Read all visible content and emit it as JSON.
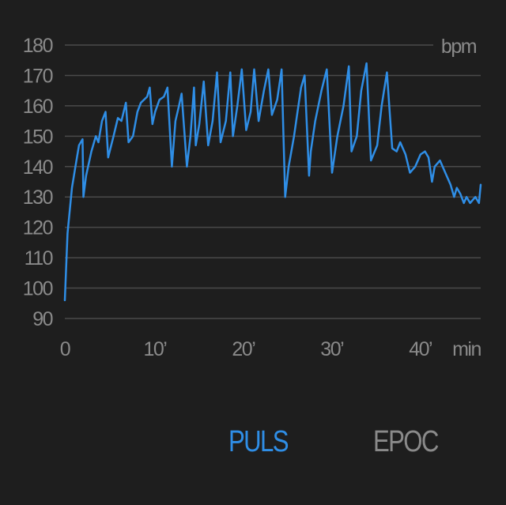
{
  "colors": {
    "accent": "#2f8ee6",
    "inactive": "#8a8a8a",
    "grid": "#4a4a4a",
    "background": "#1e1e1e"
  },
  "tabs": [
    {
      "label": "PULS",
      "active": true
    },
    {
      "label": "EPOC",
      "active": false
    }
  ],
  "chart_data": {
    "type": "line",
    "title": "",
    "y_unit": "bpm",
    "x_unit": "min",
    "ylim": [
      90,
      180
    ],
    "xlim": [
      0,
      47
    ],
    "grid": true,
    "y_ticks": [
      {
        "value": 90,
        "label": "90"
      },
      {
        "value": 100,
        "label": "100"
      },
      {
        "value": 110,
        "label": "110"
      },
      {
        "value": 120,
        "label": "120"
      },
      {
        "value": 130,
        "label": "130"
      },
      {
        "value": 140,
        "label": "140"
      },
      {
        "value": 150,
        "label": "150"
      },
      {
        "value": 160,
        "label": "160"
      },
      {
        "value": 170,
        "label": "170"
      },
      {
        "value": 180,
        "label": "180"
      }
    ],
    "x_ticks": [
      {
        "value": 0,
        "label": "0"
      },
      {
        "value": 10,
        "label": "10’"
      },
      {
        "value": 20,
        "label": "20’"
      },
      {
        "value": 30,
        "label": "30’"
      },
      {
        "value": 40,
        "label": "40’"
      }
    ],
    "series": [
      {
        "x": [
          0,
          0.3,
          0.8,
          1.2,
          1.6,
          2.0,
          2.1,
          2.4,
          3.0,
          3.5,
          3.8,
          4.2,
          4.6,
          4.9,
          5.5,
          6.0,
          6.4,
          6.9,
          7.2,
          7.7,
          8.2,
          8.6,
          9.3,
          9.6,
          9.9,
          10.2,
          10.7,
          11.2,
          11.6,
          12.1,
          12.5,
          12.9,
          13.2,
          13.8,
          14.2,
          14.6,
          14.8,
          15.2,
          15.7,
          16.2,
          16.7,
          17.2,
          17.6,
          18.2,
          18.7,
          19.0,
          19.5,
          20.0,
          20.5,
          21.0,
          21.4,
          21.9,
          22.5,
          23.0,
          23.4,
          24.0,
          24.5,
          24.9,
          25.3,
          25.9,
          26.3,
          26.7,
          27.1,
          27.6,
          27.8,
          28.3,
          29.0,
          29.6,
          30.2,
          30.8,
          31.5,
          32.1,
          32.4,
          33.0,
          33.5,
          34.1,
          34.6,
          35.3,
          35.8,
          36.4,
          37.0,
          37.5,
          37.9,
          38.5,
          39.0,
          39.6,
          40.2,
          40.7,
          41.1,
          41.5,
          41.8,
          42.4,
          43.0,
          43.6,
          44.0,
          44.3,
          44.7,
          45.1,
          45.4,
          45.8,
          46.1,
          46.4,
          46.8,
          47.0
        ],
        "y": [
          96,
          118,
          133,
          140,
          147,
          149,
          130,
          137,
          145,
          150,
          148,
          155,
          158,
          143,
          150,
          156,
          155,
          161,
          148,
          150,
          158,
          161,
          163,
          166,
          154,
          158,
          162,
          163,
          166,
          140,
          155,
          160,
          164,
          140,
          150,
          166,
          147,
          154,
          168,
          147,
          155,
          171,
          148,
          155,
          171,
          150,
          160,
          172,
          152,
          158,
          172,
          155,
          165,
          172,
          157,
          162,
          172,
          130,
          140,
          150,
          158,
          166,
          170,
          137,
          145,
          155,
          165,
          172,
          138,
          150,
          160,
          173,
          145,
          150,
          165,
          174,
          142,
          147,
          160,
          171,
          146,
          145,
          148,
          144,
          138,
          140,
          144,
          145,
          143,
          135,
          140,
          142,
          138,
          134,
          130,
          133,
          131,
          128,
          130,
          128,
          129,
          130,
          128,
          134
        ]
      }
    ]
  }
}
